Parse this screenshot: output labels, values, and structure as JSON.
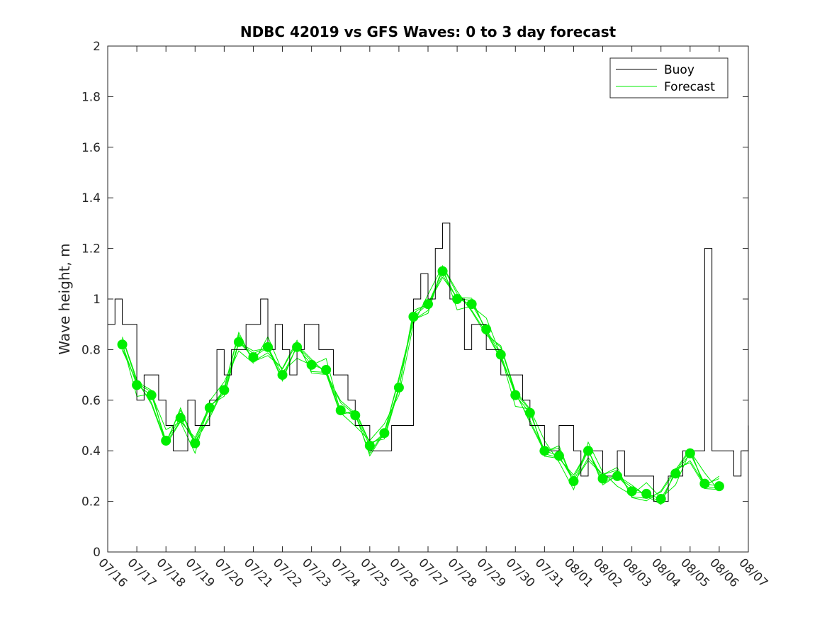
{
  "chart_data": {
    "type": "line",
    "title": "NDBC 42019 vs GFS Waves: 0 to 3 day forecast",
    "xlabel": "",
    "ylabel": "Wave height, m",
    "ylim": [
      0,
      2
    ],
    "y_ticks": [
      "0",
      "0.2",
      "0.4",
      "0.6",
      "0.8",
      "1",
      "1.2",
      "1.4",
      "1.6",
      "1.8",
      "2"
    ],
    "x_ticks": [
      "07/16",
      "07/17",
      "07/18",
      "07/19",
      "07/20",
      "07/21",
      "07/22",
      "07/23",
      "07/24",
      "07/25",
      "07/26",
      "07/27",
      "07/28",
      "07/29",
      "07/30",
      "07/31",
      "08/01",
      "08/02",
      "08/03",
      "08/04",
      "08/05",
      "08/06",
      "08/07"
    ],
    "grid": false,
    "legend_position": "top-right",
    "colors": {
      "buoy": "#000000",
      "forecast": "#00ee00"
    },
    "series": [
      {
        "name": "Buoy",
        "x": [
          "07/16 00:00",
          "07/16 06:00",
          "07/16 12:00",
          "07/16 18:00",
          "07/17 00:00",
          "07/17 06:00",
          "07/17 12:00",
          "07/17 18:00",
          "07/18 00:00",
          "07/18 06:00",
          "07/18 12:00",
          "07/18 18:00",
          "07/19 00:00",
          "07/19 06:00",
          "07/19 12:00",
          "07/19 18:00",
          "07/20 00:00",
          "07/20 06:00",
          "07/20 12:00",
          "07/20 18:00",
          "07/21 00:00",
          "07/21 06:00",
          "07/21 12:00",
          "07/21 18:00",
          "07/22 00:00",
          "07/22 06:00",
          "07/22 12:00",
          "07/22 18:00",
          "07/23 00:00",
          "07/23 06:00",
          "07/23 12:00",
          "07/23 18:00",
          "07/24 00:00",
          "07/24 06:00",
          "07/24 12:00",
          "07/24 18:00",
          "07/25 00:00",
          "07/25 06:00",
          "07/25 12:00",
          "07/25 18:00",
          "07/26 00:00",
          "07/26 06:00",
          "07/26 12:00",
          "07/26 18:00",
          "07/27 00:00",
          "07/27 06:00",
          "07/27 12:00",
          "07/27 18:00",
          "07/28 00:00",
          "07/28 06:00",
          "07/28 12:00",
          "07/28 18:00",
          "07/29 00:00",
          "07/29 06:00",
          "07/29 12:00",
          "07/29 18:00",
          "07/30 00:00",
          "07/30 06:00",
          "07/30 12:00",
          "07/30 18:00",
          "07/31 00:00",
          "07/31 06:00",
          "07/31 12:00",
          "07/31 18:00",
          "08/01 00:00",
          "08/01 06:00",
          "08/01 12:00",
          "08/01 18:00",
          "08/02 00:00",
          "08/02 06:00",
          "08/02 12:00",
          "08/02 18:00",
          "08/03 00:00",
          "08/03 06:00",
          "08/03 12:00",
          "08/03 18:00",
          "08/04 00:00",
          "08/04 06:00",
          "08/04 12:00",
          "08/04 18:00",
          "08/05 00:00",
          "08/05 06:00",
          "08/05 12:00",
          "08/05 18:00",
          "08/06 00:00",
          "08/06 06:00",
          "08/06 12:00",
          "08/06 18:00",
          "08/07 00:00"
        ],
        "values": [
          0.9,
          1.0,
          0.9,
          0.9,
          0.6,
          0.7,
          0.7,
          0.6,
          0.5,
          0.4,
          0.4,
          0.6,
          0.5,
          0.5,
          0.6,
          0.8,
          0.7,
          0.8,
          0.8,
          0.9,
          0.9,
          1.0,
          0.8,
          0.9,
          0.8,
          0.7,
          0.8,
          0.9,
          0.9,
          0.8,
          0.8,
          0.7,
          0.7,
          0.6,
          0.5,
          0.5,
          0.4,
          0.4,
          0.4,
          0.5,
          0.5,
          0.5,
          1.0,
          1.1,
          1.0,
          1.2,
          1.3,
          1.0,
          1.0,
          0.8,
          0.9,
          0.9,
          0.8,
          0.8,
          0.7,
          0.7,
          0.7,
          0.6,
          0.5,
          0.5,
          0.4,
          0.4,
          0.5,
          0.5,
          0.4,
          0.3,
          0.4,
          0.4,
          0.3,
          0.3,
          0.4,
          0.3,
          0.3,
          0.3,
          0.3,
          0.2,
          0.2,
          0.3,
          0.3,
          0.4,
          0.4,
          0.4,
          1.2,
          0.4,
          0.4,
          0.4,
          0.3,
          0.4,
          0.5
        ]
      },
      {
        "name": "Forecast",
        "x": [
          "07/16 12:00",
          "07/17 00:00",
          "07/17 12:00",
          "07/18 00:00",
          "07/18 12:00",
          "07/19 00:00",
          "07/19 12:00",
          "07/20 00:00",
          "07/20 12:00",
          "07/21 00:00",
          "07/21 12:00",
          "07/22 00:00",
          "07/22 12:00",
          "07/23 00:00",
          "07/23 12:00",
          "07/24 00:00",
          "07/24 12:00",
          "07/25 00:00",
          "07/25 12:00",
          "07/26 00:00",
          "07/26 12:00",
          "07/27 00:00",
          "07/27 12:00",
          "07/28 00:00",
          "07/28 12:00",
          "07/29 00:00",
          "07/29 12:00",
          "07/30 00:00",
          "07/30 12:00",
          "07/31 00:00",
          "07/31 12:00",
          "08/01 00:00",
          "08/01 12:00",
          "08/02 00:00",
          "08/02 12:00",
          "08/03 00:00",
          "08/03 12:00",
          "08/04 00:00",
          "08/04 12:00",
          "08/05 00:00",
          "08/05 12:00",
          "08/06 00:00"
        ],
        "values": [
          0.82,
          0.66,
          0.62,
          0.44,
          0.53,
          0.43,
          0.57,
          0.64,
          0.83,
          0.77,
          0.81,
          0.7,
          0.81,
          0.74,
          0.72,
          0.56,
          0.54,
          0.42,
          0.47,
          0.65,
          0.93,
          0.98,
          1.11,
          1.0,
          0.98,
          0.88,
          0.78,
          0.62,
          0.55,
          0.4,
          0.38,
          0.28,
          0.4,
          0.29,
          0.3,
          0.24,
          0.23,
          0.21,
          0.31,
          0.39,
          0.27,
          0.26
        ]
      }
    ],
    "legend": [
      "Buoy",
      "Forecast"
    ]
  }
}
